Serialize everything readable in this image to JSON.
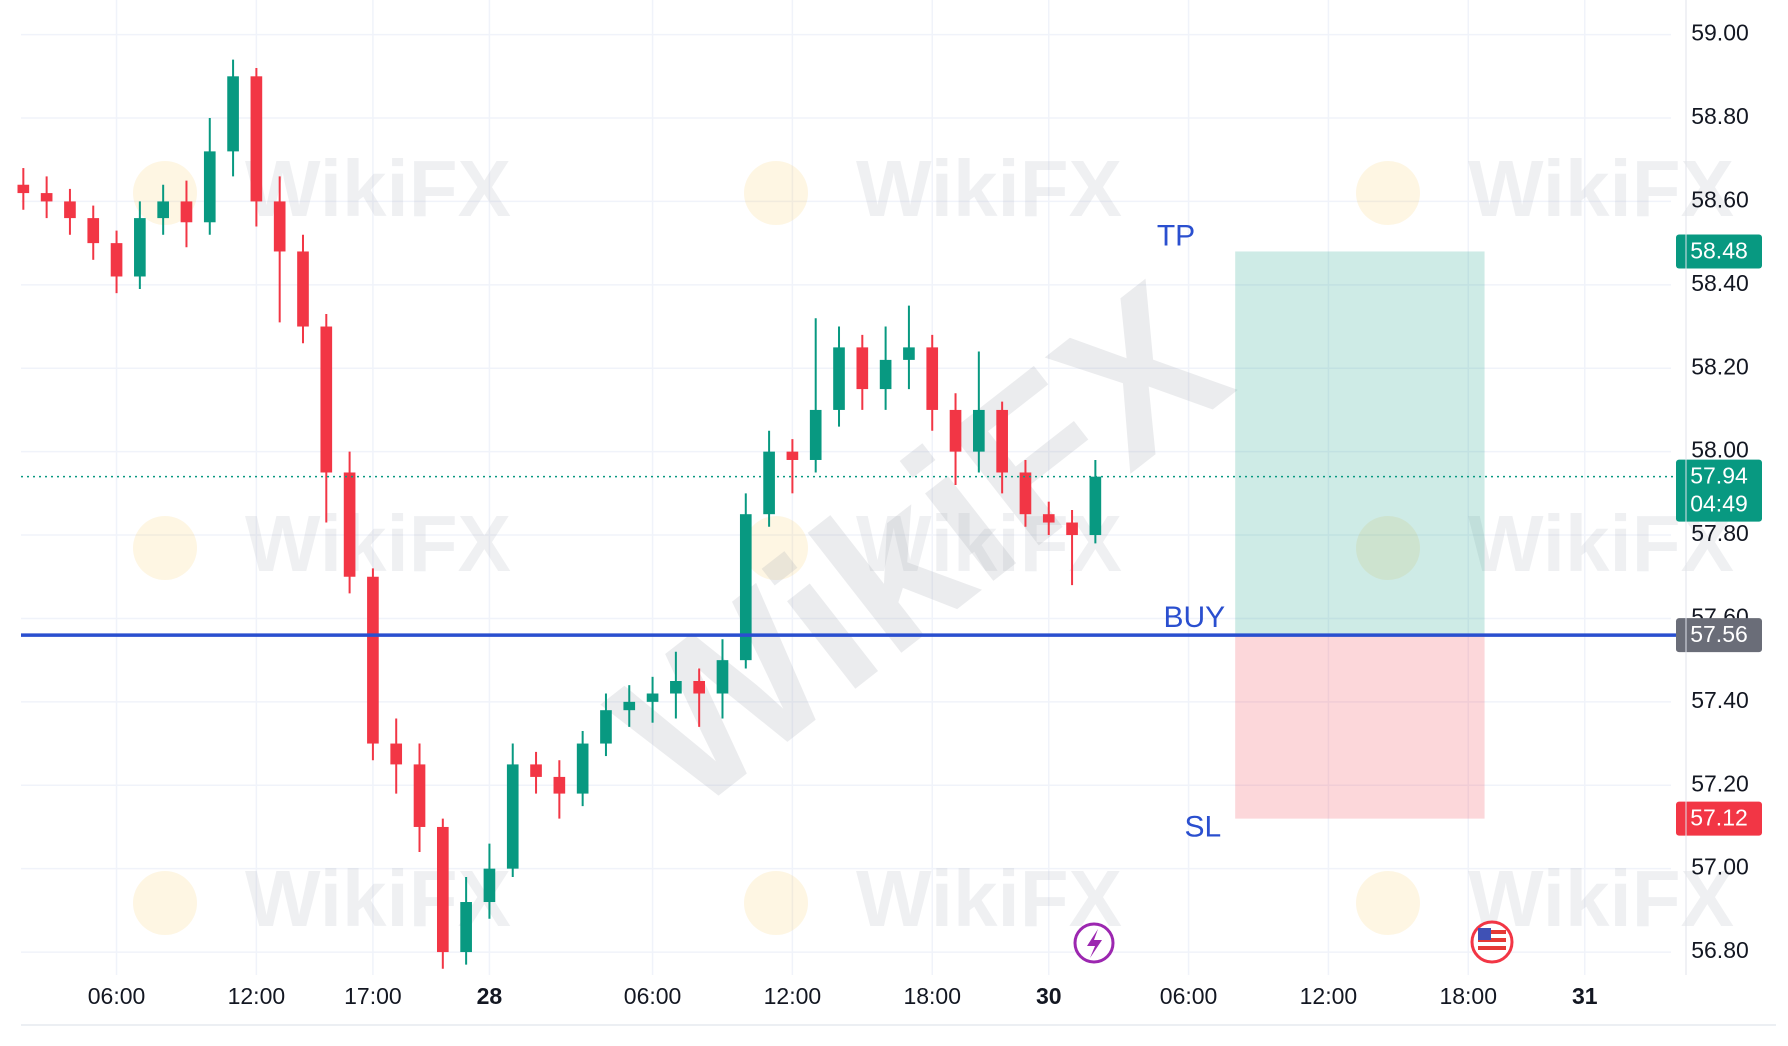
{
  "chart_data": {
    "type": "candlestick",
    "x": [
      1,
      2,
      3,
      4,
      5,
      6,
      7,
      8,
      9,
      10,
      11,
      12,
      13,
      14,
      15,
      16,
      17,
      18,
      19,
      20,
      21,
      22,
      23,
      24,
      25,
      26,
      27,
      28,
      29,
      30,
      31,
      32,
      33,
      34,
      35,
      36,
      37,
      38,
      39,
      40,
      41,
      42,
      43,
      44,
      45,
      46,
      47
    ],
    "open": [
      58.64,
      58.62,
      58.6,
      58.56,
      58.5,
      58.42,
      58.56,
      58.6,
      58.55,
      58.72,
      58.9,
      58.6,
      58.48,
      58.3,
      57.95,
      57.7,
      57.3,
      57.25,
      57.1,
      56.8,
      56.92,
      57.0,
      57.25,
      57.22,
      57.18,
      57.3,
      57.38,
      57.4,
      57.42,
      57.45,
      57.42,
      57.5,
      57.85,
      58.0,
      57.98,
      58.1,
      58.25,
      58.15,
      58.22,
      58.25,
      58.1,
      58.0,
      58.1,
      57.95,
      57.85,
      57.83,
      57.8
    ],
    "high": [
      58.68,
      58.66,
      58.63,
      58.59,
      58.53,
      58.6,
      58.64,
      58.65,
      58.8,
      58.94,
      58.92,
      58.66,
      58.52,
      58.33,
      58.0,
      57.72,
      57.36,
      57.3,
      57.12,
      56.98,
      57.06,
      57.3,
      57.28,
      57.26,
      57.33,
      57.42,
      57.44,
      57.46,
      57.52,
      57.48,
      57.55,
      57.9,
      58.05,
      58.03,
      58.32,
      58.3,
      58.28,
      58.3,
      58.35,
      58.28,
      58.14,
      58.24,
      58.12,
      57.98,
      57.88,
      57.86,
      57.98
    ],
    "low": [
      58.58,
      58.56,
      58.52,
      58.46,
      58.38,
      58.39,
      58.52,
      58.49,
      58.52,
      58.66,
      58.54,
      58.31,
      58.26,
      57.83,
      57.66,
      57.26,
      57.18,
      57.04,
      56.76,
      56.77,
      56.88,
      56.98,
      57.18,
      57.12,
      57.15,
      57.27,
      57.34,
      57.35,
      57.36,
      57.34,
      57.36,
      57.48,
      57.82,
      57.9,
      57.95,
      58.06,
      58.1,
      58.1,
      58.15,
      58.05,
      57.92,
      57.95,
      57.9,
      57.82,
      57.8,
      57.68,
      57.78
    ],
    "close": [
      58.62,
      58.6,
      58.56,
      58.5,
      58.42,
      58.56,
      58.6,
      58.55,
      58.72,
      58.9,
      58.6,
      58.48,
      58.3,
      57.95,
      57.7,
      57.3,
      57.25,
      57.1,
      56.8,
      56.92,
      57.0,
      57.25,
      57.22,
      57.18,
      57.3,
      57.38,
      57.4,
      57.42,
      57.45,
      57.42,
      57.5,
      57.85,
      58.0,
      57.98,
      58.1,
      58.25,
      58.15,
      58.22,
      58.25,
      58.1,
      58.0,
      58.1,
      57.95,
      57.85,
      57.83,
      57.8,
      57.94
    ],
    "up_color": "#089981",
    "down_color": "#f23645",
    "xlim": [
      0.9,
      71.7
    ],
    "ylim": [
      56.745,
      59.083
    ],
    "xticks": [
      {
        "value": 5,
        "label": "06:00"
      },
      {
        "value": 11,
        "label": "12:00"
      },
      {
        "value": 16,
        "label": "17:00"
      },
      {
        "value": 21,
        "label": "28"
      },
      {
        "value": 28,
        "label": "06:00"
      },
      {
        "value": 34,
        "label": "12:00"
      },
      {
        "value": 40,
        "label": "18:00"
      },
      {
        "value": 45,
        "label": "30"
      },
      {
        "value": 51,
        "label": "06:00"
      },
      {
        "value": 57,
        "label": "12:00"
      },
      {
        "value": 63,
        "label": "18:00"
      },
      {
        "value": 68,
        "label": "31"
      }
    ],
    "yticks": [
      {
        "value": 56.8,
        "label": "56.80"
      },
      {
        "value": 57.0,
        "label": "57.00"
      },
      {
        "value": 57.2,
        "label": "57.20"
      },
      {
        "value": 57.4,
        "label": "57.40"
      },
      {
        "value": 57.6,
        "label": "57.60"
      },
      {
        "value": 57.8,
        "label": "57.80"
      },
      {
        "value": 58.0,
        "label": "58.00"
      },
      {
        "value": 58.2,
        "label": "58.20"
      },
      {
        "value": 58.4,
        "label": "58.40"
      },
      {
        "value": 58.6,
        "label": "58.60"
      },
      {
        "value": 58.8,
        "label": "58.80"
      },
      {
        "value": 59.0,
        "label": "59.00"
      }
    ],
    "grid": true,
    "last_price": 57.94,
    "countdown": "04:49",
    "position": {
      "start_x": 53,
      "end_x": 63.7,
      "tp": 58.48,
      "entry": 57.56,
      "sl": 57.12,
      "tp_label": "TP",
      "entry_label": "BUY",
      "sl_label": "SL",
      "tp_color": "#089981",
      "entry_color": "#2a4fcf",
      "sl_color": "#f23645"
    },
    "watermark": "WikiFX"
  }
}
